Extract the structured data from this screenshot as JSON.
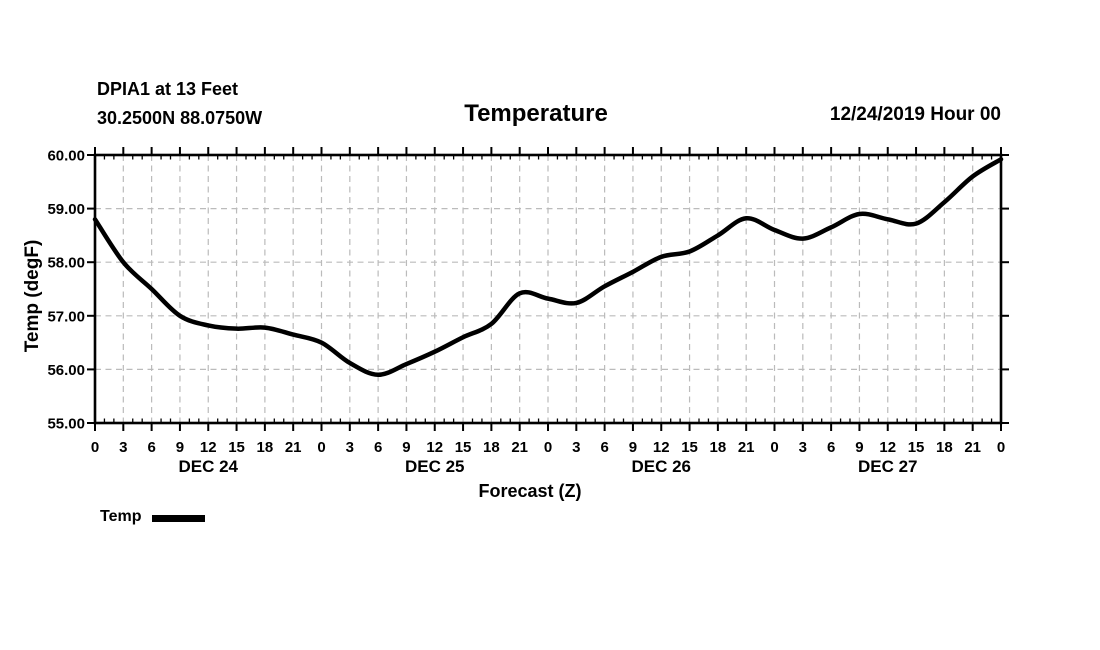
{
  "header": {
    "station": "DPIA1 at 13 Feet",
    "coordinates": "30.2500N 88.0750W",
    "datetime": "12/24/2019 Hour 00"
  },
  "legend": {
    "label": "Temp"
  },
  "colors": {
    "line": "#000000",
    "grid": "#bbbbbb",
    "text": "#000000",
    "background": "#ffffff"
  },
  "chart_data": {
    "type": "line",
    "title": "Temperature",
    "xlabel": "Forecast (Z)",
    "ylabel": "Temp (degF)",
    "xlim": [
      0,
      96
    ],
    "ylim": [
      55,
      60
    ],
    "grid": "dashed",
    "legend_position": "bottom-left",
    "x_hours": [
      0,
      3,
      6,
      9,
      12,
      15,
      18,
      21,
      24,
      27,
      30,
      33,
      36,
      39,
      42,
      45,
      48,
      51,
      54,
      57,
      60,
      63,
      66,
      69,
      72,
      75,
      78,
      81,
      84,
      87,
      90,
      93,
      96
    ],
    "x_tick_labels": [
      "0",
      "3",
      "6",
      "9",
      "12",
      "15",
      "18",
      "21",
      "0",
      "3",
      "6",
      "9",
      "12",
      "15",
      "18",
      "21",
      "0",
      "3",
      "6",
      "9",
      "12",
      "15",
      "18",
      "21",
      "0",
      "3",
      "6",
      "9",
      "12",
      "15",
      "18",
      "21",
      "0"
    ],
    "x_minor_tick_step_hours": 1,
    "y_ticks": [
      {
        "v": 55,
        "label": "55.00"
      },
      {
        "v": 56,
        "label": "56.00"
      },
      {
        "v": 57,
        "label": "57.00"
      },
      {
        "v": 58,
        "label": "58.00"
      },
      {
        "v": 59,
        "label": "59.00"
      },
      {
        "v": 60,
        "label": "60.00"
      }
    ],
    "day_labels": [
      {
        "label": "DEC 24",
        "hour": 12
      },
      {
        "label": "DEC 25",
        "hour": 36
      },
      {
        "label": "DEC 26",
        "hour": 60
      },
      {
        "label": "DEC 27",
        "hour": 84
      }
    ],
    "series": [
      {
        "name": "Temp",
        "values": [
          58.8,
          58.0,
          57.5,
          57.0,
          56.82,
          56.76,
          56.78,
          56.65,
          56.5,
          56.12,
          55.9,
          56.1,
          56.33,
          56.6,
          56.85,
          57.42,
          57.32,
          57.24,
          57.55,
          57.82,
          58.1,
          58.2,
          58.5,
          58.82,
          58.6,
          58.44,
          58.65,
          58.9,
          58.8,
          58.72,
          59.12,
          59.6,
          59.92
        ]
      }
    ]
  }
}
